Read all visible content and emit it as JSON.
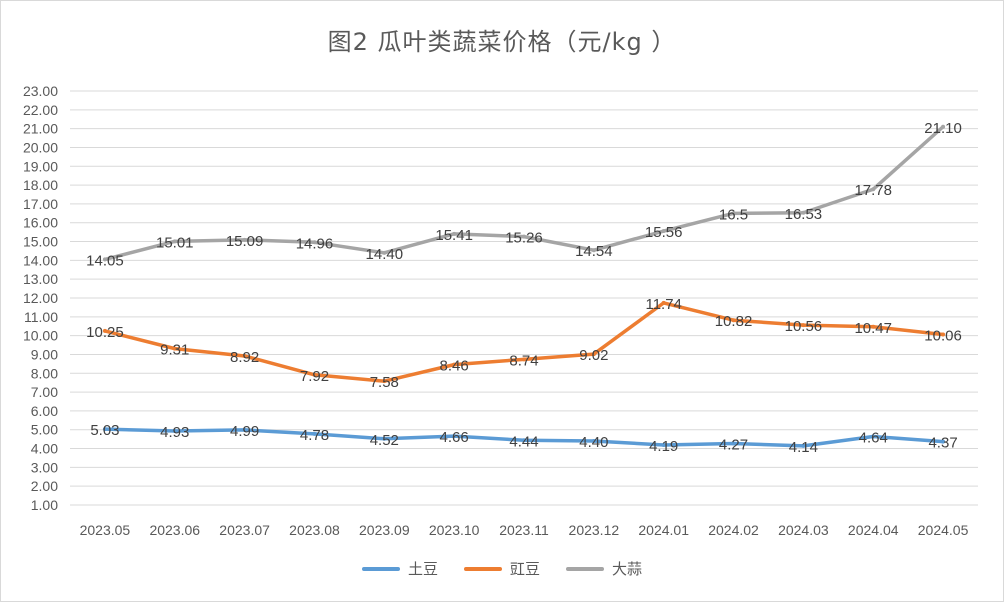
{
  "chart_data": {
    "type": "line",
    "title": "图2   瓜叶类蔬菜价格（元/kg ）",
    "xlabel": "",
    "ylabel": "",
    "ylim": [
      1,
      23
    ],
    "y_ticks": [
      "1.00",
      "2.00",
      "3.00",
      "4.00",
      "5.00",
      "6.00",
      "7.00",
      "8.00",
      "9.00",
      "10.00",
      "11.00",
      "12.00",
      "13.00",
      "14.00",
      "15.00",
      "16.00",
      "17.00",
      "18.00",
      "19.00",
      "20.00",
      "21.00",
      "22.00",
      "23.00"
    ],
    "categories": [
      "2023.05",
      "2023.06",
      "2023.07",
      "2023.08",
      "2023.09",
      "2023.10",
      "2023.11",
      "2023.12",
      "2024.01",
      "2024.02",
      "2024.03",
      "2024.04",
      "2024.05"
    ],
    "series": [
      {
        "name": "土豆",
        "color": "#5b9bd5",
        "values": [
          5.03,
          4.93,
          4.99,
          4.78,
          4.52,
          4.66,
          4.44,
          4.4,
          4.19,
          4.27,
          4.14,
          4.64,
          4.37
        ],
        "labels": [
          "5.03",
          "4.93",
          "4.99",
          "4.78",
          "4.52",
          "4.66",
          "4.44",
          "4.40",
          "4.19",
          "4.27",
          "4.14",
          "4.64",
          "4.37"
        ]
      },
      {
        "name": "豇豆",
        "color": "#ed7d31",
        "values": [
          10.25,
          9.31,
          8.92,
          7.92,
          7.58,
          8.46,
          8.74,
          9.02,
          11.74,
          10.82,
          10.56,
          10.47,
          10.06
        ],
        "labels": [
          "10.25",
          "9.31",
          "8.92",
          "7.92",
          "7.58",
          "8.46",
          "8.74",
          "9.02",
          "11.74",
          "10.82",
          "10.56",
          "10.47",
          "10.06"
        ]
      },
      {
        "name": "大蒜",
        "color": "#a5a5a5",
        "values": [
          14.05,
          15.01,
          15.09,
          14.96,
          14.4,
          15.41,
          15.26,
          14.54,
          15.56,
          16.5,
          16.53,
          17.78,
          21.1
        ],
        "labels": [
          "14.05",
          "15.01",
          "15.09",
          "14.96",
          "14.40",
          "15.41",
          "15.26",
          "14.54",
          "15.56",
          "16.5",
          "16.53",
          "17.78",
          "21.10"
        ]
      }
    ],
    "grid": true,
    "legend_position": "bottom"
  }
}
